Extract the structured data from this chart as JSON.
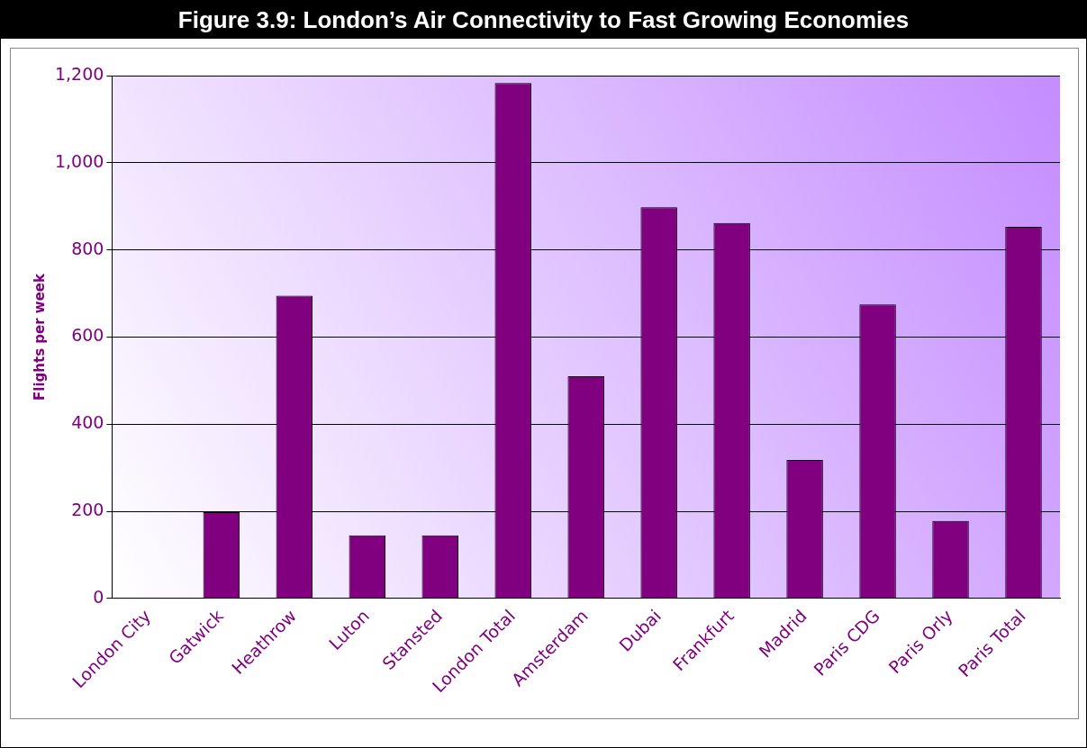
{
  "chart_data": {
    "type": "bar",
    "title": "Figure 3.9: London’s Air Connectivity to Fast Growing Economies",
    "ylabel": "Flights per week",
    "categories": [
      "London City",
      "Gatwick",
      "Heathrow",
      "Luton",
      "Stansted",
      "London Total",
      "Amsterdam",
      "Dubai",
      "Frankfurt",
      "Madrid",
      "Paris CDG",
      "Paris Orly",
      "Paris Total"
    ],
    "values": [
      0,
      198,
      695,
      145,
      145,
      1183,
      510,
      898,
      862,
      318,
      675,
      178,
      853
    ],
    "color": "#800080",
    "ylim": [
      0,
      1200
    ],
    "yticks": [
      0,
      200,
      400,
      600,
      800,
      {
        "value": 1000,
        "label": "1,000"
      },
      {
        "value": 1200,
        "label": "1,200"
      }
    ],
    "grid": "y",
    "legend": false
  }
}
